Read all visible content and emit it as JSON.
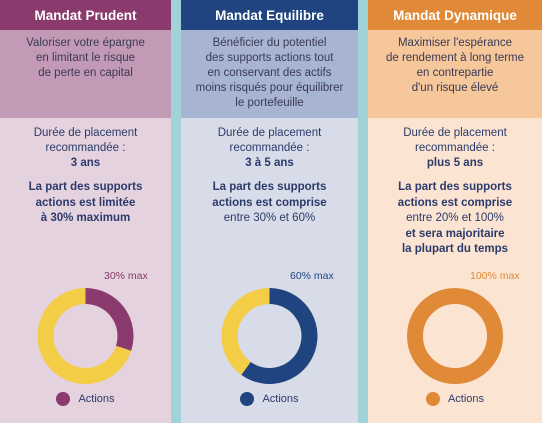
{
  "colors": {
    "gold": "#f3cd46",
    "strip": "#9fd3d8"
  },
  "chart_data": [
    {
      "type": "pie",
      "title": "Mandat Prudent",
      "max_label": "30% max",
      "legend": [
        "Actions"
      ],
      "slices": [
        {
          "label": "Actions",
          "value": 30,
          "color": "#8a3a6c"
        },
        {
          "label": "",
          "value": 70,
          "color": "#f3cd46"
        }
      ]
    },
    {
      "type": "pie",
      "title": "Mandat Equilibre",
      "max_label": "60% max",
      "legend": [
        "Actions"
      ],
      "slices": [
        {
          "label": "Actions",
          "value": 60,
          "color": "#1f4480"
        },
        {
          "label": "",
          "value": 40,
          "color": "#f3cd46"
        }
      ]
    },
    {
      "type": "pie",
      "title": "Mandat Dynamique",
      "max_label": "100% max",
      "legend": [
        "Actions"
      ],
      "slices": [
        {
          "label": "Actions",
          "value": 100,
          "color": "#e08a37"
        }
      ]
    }
  ],
  "cards": [
    {
      "title": "Mandat Prudent",
      "header_color": "#8a3a6c",
      "objective_bg": "#c39ab6",
      "body_bg": "#e4d3de",
      "accent": "#8a3a6c",
      "objective": [
        "Valoriser votre épargne",
        "en limitant le risque",
        "de perte en capital"
      ],
      "duration_label": [
        "Durée de placement",
        "recommandée :"
      ],
      "duration_value": "3 ans",
      "share": [
        "La part des supports",
        "actions est limitée",
        "à 30% maximum"
      ],
      "share_bold": [
        true,
        true,
        true
      ],
      "max_label": "30% max",
      "legend": "Actions"
    },
    {
      "title": "Mandat Equilibre",
      "header_color": "#1f4480",
      "objective_bg": "#a7b5d2",
      "body_bg": "#d7dce8",
      "accent": "#1f4480",
      "objective": [
        "Bénéficier du potentiel",
        "des supports actions tout",
        "en conservant des actifs",
        "moins risqués pour équilibrer",
        "le portefeuille"
      ],
      "duration_label": [
        "Durée de placement",
        "recommandée :"
      ],
      "duration_value": "3 à 5 ans",
      "share": [
        "La part des supports",
        "actions est comprise",
        "entre 30% et 60%"
      ],
      "share_bold": [
        true,
        true,
        false
      ],
      "max_label": "60% max",
      "legend": "Actions"
    },
    {
      "title": "Mandat Dynamique",
      "header_color": "#e08a37",
      "objective_bg": "#f5c79a",
      "body_bg": "#fbe5d2",
      "accent": "#e08a37",
      "objective": [
        "Maximiser l'espérance",
        "de rendement à long terme",
        "en contrepartie",
        "d'un risque élevé"
      ],
      "duration_label": [
        "Durée de placement",
        "recommandée :"
      ],
      "duration_value": "plus 5 ans",
      "share": [
        "La part des supports",
        "actions est comprise",
        "entre 20% et 100%",
        "et sera majoritaire",
        "la plupart du temps"
      ],
      "share_bold": [
        true,
        true,
        false,
        true,
        true
      ],
      "max_label": "100% max",
      "legend": "Actions"
    }
  ]
}
